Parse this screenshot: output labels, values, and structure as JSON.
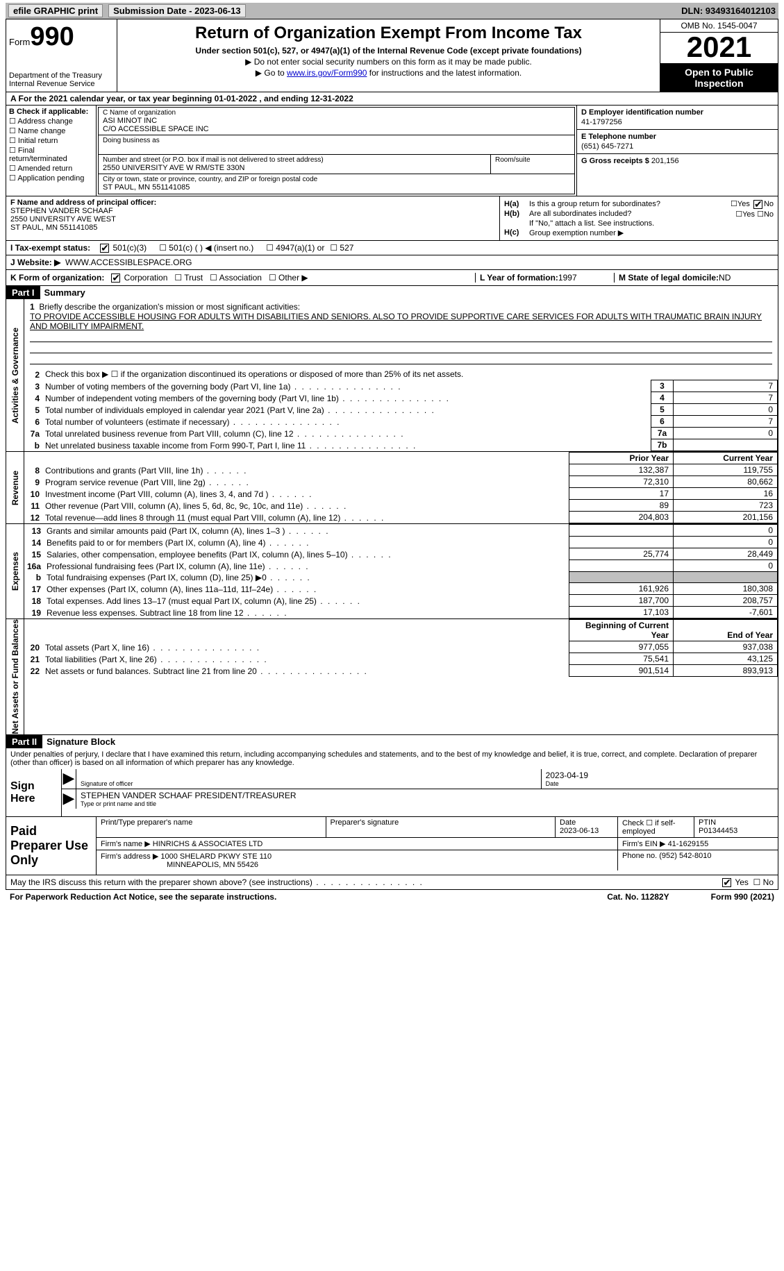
{
  "topbar": {
    "efile": "efile GRAPHIC print",
    "submission_label": "Submission Date - 2023-06-13",
    "dln": "DLN: 93493164012103"
  },
  "header": {
    "form_label": "Form",
    "form_num": "990",
    "dept": "Department of the Treasury",
    "irs": "Internal Revenue Service",
    "title": "Return of Organization Exempt From Income Tax",
    "sub1": "Under section 501(c), 527, or 4947(a)(1) of the Internal Revenue Code (except private foundations)",
    "sub2": "▶ Do not enter social security numbers on this form as it may be made public.",
    "sub3_pre": "▶ Go to ",
    "sub3_link": "www.irs.gov/Form990",
    "sub3_post": " for instructions and the latest information.",
    "omb": "OMB No. 1545-0047",
    "year": "2021",
    "inspect": "Open to Public Inspection"
  },
  "row_a": "A For the 2021 calendar year, or tax year beginning 01-01-2022   , and ending 12-31-2022",
  "col_b": {
    "label": "B Check if applicable:",
    "opts": [
      "Address change",
      "Name change",
      "Initial return",
      "Final return/terminated",
      "Amended return",
      "Application pending"
    ]
  },
  "col_c": {
    "name_lbl": "C Name of organization",
    "name": "ASI MINOT INC",
    "co": "C/O ACCESSIBLE SPACE INC",
    "dba_lbl": "Doing business as",
    "dba": "",
    "street_lbl": "Number and street (or P.O. box if mail is not delivered to street address)",
    "street": "2550 UNIVERSITY AVE W RM/STE 330N",
    "suite_lbl": "Room/suite",
    "city_lbl": "City or town, state or province, country, and ZIP or foreign postal code",
    "city": "ST PAUL, MN  551141085"
  },
  "col_d": {
    "ein_lbl": "D Employer identification number",
    "ein": "41-1797256",
    "tel_lbl": "E Telephone number",
    "tel": "(651) 645-7271",
    "gross_lbl": "G Gross receipts $",
    "gross": "201,156"
  },
  "row_f": {
    "lbl": "F Name and address of principal officer:",
    "name": "STEPHEN VANDER SCHAAF",
    "addr1": "2550 UNIVERSITY AVE WEST",
    "addr2": "ST PAUL, MN  551141085"
  },
  "row_h": {
    "ha": "Is this a group return for subordinates?",
    "hb": "Are all subordinates included?",
    "hb_note": "If \"No,\" attach a list. See instructions.",
    "hc": "Group exemption number ▶"
  },
  "row_i": {
    "lbl": "I   Tax-exempt status:",
    "o1": "501(c)(3)",
    "o2": "501(c) (  ) ◀ (insert no.)",
    "o3": "4947(a)(1) or",
    "o4": "527"
  },
  "row_j": {
    "lbl": "J  Website: ▶",
    "val": "WWW.ACCESSIBLESPACE.ORG"
  },
  "row_k": {
    "lbl": "K Form of organization:",
    "o1": "Corporation",
    "o2": "Trust",
    "o3": "Association",
    "o4": "Other ▶",
    "l_lbl": "L Year of formation:",
    "l_val": "1997",
    "m_lbl": "M State of legal domicile:",
    "m_val": "ND"
  },
  "part1": {
    "hdr": "Part I",
    "title": "Summary",
    "q1": "Briefly describe the organization's mission or most significant activities:",
    "mission": "TO PROVIDE ACCESSIBLE HOUSING FOR ADULTS WITH DISABILITIES AND SENIORS. ALSO TO PROVIDE SUPPORTIVE CARE SERVICES FOR ADULTS WITH TRAUMATIC BRAIN INJURY AND MOBILITY IMPAIRMENT.",
    "q2": "Check this box ▶ ☐  if the organization discontinued its operations or disposed of more than 25% of its net assets.",
    "rows_gov": [
      {
        "n": "3",
        "lbl": "Number of voting members of the governing body (Part VI, line 1a)",
        "box": "3",
        "val": "7"
      },
      {
        "n": "4",
        "lbl": "Number of independent voting members of the governing body (Part VI, line 1b)",
        "box": "4",
        "val": "7"
      },
      {
        "n": "5",
        "lbl": "Total number of individuals employed in calendar year 2021 (Part V, line 2a)",
        "box": "5",
        "val": "0"
      },
      {
        "n": "6",
        "lbl": "Total number of volunteers (estimate if necessary)",
        "box": "6",
        "val": "7"
      },
      {
        "n": "7a",
        "lbl": "Total unrelated business revenue from Part VIII, column (C), line 12",
        "box": "7a",
        "val": "0"
      },
      {
        "n": "b",
        "lbl": "Net unrelated business taxable income from Form 990-T, Part I, line 11",
        "box": "7b",
        "val": ""
      }
    ],
    "col_py": "Prior Year",
    "col_cy": "Current Year",
    "rows_rev": [
      {
        "n": "8",
        "lbl": "Contributions and grants (Part VIII, line 1h)",
        "py": "132,387",
        "cy": "119,755"
      },
      {
        "n": "9",
        "lbl": "Program service revenue (Part VIII, line 2g)",
        "py": "72,310",
        "cy": "80,662"
      },
      {
        "n": "10",
        "lbl": "Investment income (Part VIII, column (A), lines 3, 4, and 7d )",
        "py": "17",
        "cy": "16"
      },
      {
        "n": "11",
        "lbl": "Other revenue (Part VIII, column (A), lines 5, 6d, 8c, 9c, 10c, and 11e)",
        "py": "89",
        "cy": "723"
      },
      {
        "n": "12",
        "lbl": "Total revenue—add lines 8 through 11 (must equal Part VIII, column (A), line 12)",
        "py": "204,803",
        "cy": "201,156"
      }
    ],
    "rows_exp": [
      {
        "n": "13",
        "lbl": "Grants and similar amounts paid (Part IX, column (A), lines 1–3 )",
        "py": "",
        "cy": "0"
      },
      {
        "n": "14",
        "lbl": "Benefits paid to or for members (Part IX, column (A), line 4)",
        "py": "",
        "cy": "0"
      },
      {
        "n": "15",
        "lbl": "Salaries, other compensation, employee benefits (Part IX, column (A), lines 5–10)",
        "py": "25,774",
        "cy": "28,449"
      },
      {
        "n": "16a",
        "lbl": "Professional fundraising fees (Part IX, column (A), line 11e)",
        "py": "",
        "cy": "0"
      },
      {
        "n": "b",
        "lbl": "Total fundraising expenses (Part IX, column (D), line 25) ▶0",
        "py": "shade",
        "cy": "shade"
      },
      {
        "n": "17",
        "lbl": "Other expenses (Part IX, column (A), lines 11a–11d, 11f–24e)",
        "py": "161,926",
        "cy": "180,308"
      },
      {
        "n": "18",
        "lbl": "Total expenses. Add lines 13–17 (must equal Part IX, column (A), line 25)",
        "py": "187,700",
        "cy": "208,757"
      },
      {
        "n": "19",
        "lbl": "Revenue less expenses. Subtract line 18 from line 12",
        "py": "17,103",
        "cy": "-7,601"
      }
    ],
    "col_bcy": "Beginning of Current Year",
    "col_eoy": "End of Year",
    "rows_net": [
      {
        "n": "20",
        "lbl": "Total assets (Part X, line 16)",
        "py": "977,055",
        "cy": "937,038"
      },
      {
        "n": "21",
        "lbl": "Total liabilities (Part X, line 26)",
        "py": "75,541",
        "cy": "43,125"
      },
      {
        "n": "22",
        "lbl": "Net assets or fund balances. Subtract line 21 from line 20",
        "py": "901,514",
        "cy": "893,913"
      }
    ],
    "vtab_gov": "Activities & Governance",
    "vtab_rev": "Revenue",
    "vtab_exp": "Expenses",
    "vtab_net": "Net Assets or Fund Balances"
  },
  "part2": {
    "hdr": "Part II",
    "title": "Signature Block",
    "decl": "Under penalties of perjury, I declare that I have examined this return, including accompanying schedules and statements, and to the best of my knowledge and belief, it is true, correct, and complete. Declaration of preparer (other than officer) is based on all information of which preparer has any knowledge.",
    "sign_here": "Sign Here",
    "sig_officer_lbl": "Signature of officer",
    "sig_date": "2023-04-19",
    "date_lbl": "Date",
    "officer_name": "STEPHEN VANDER SCHAAF  PRESIDENT/TREASURER",
    "type_lbl": "Type or print name and title",
    "paid_prep": "Paid Preparer Use Only",
    "pt_name_lbl": "Print/Type preparer's name",
    "pt_sig_lbl": "Preparer's signature",
    "pt_date_lbl": "Date",
    "pt_date": "2023-06-13",
    "pt_self_lbl": "Check ☐ if self-employed",
    "ptin_lbl": "PTIN",
    "ptin": "P01344453",
    "firm_name_lbl": "Firm's name    ▶",
    "firm_name": "HINRICHS & ASSOCIATES LTD",
    "firm_ein_lbl": "Firm's EIN ▶",
    "firm_ein": "41-1629155",
    "firm_addr_lbl": "Firm's address ▶",
    "firm_addr1": "1000 SHELARD PKWY STE 110",
    "firm_addr2": "MINNEAPOLIS, MN  55426",
    "phone_lbl": "Phone no.",
    "phone": "(952) 542-8010"
  },
  "footer": {
    "discuss": "May the IRS discuss this return with the preparer shown above? (see instructions)",
    "pra": "For Paperwork Reduction Act Notice, see the separate instructions.",
    "cat": "Cat. No. 11282Y",
    "form": "Form 990 (2021)"
  },
  "labels": {
    "yes": "Yes",
    "no": "No"
  }
}
